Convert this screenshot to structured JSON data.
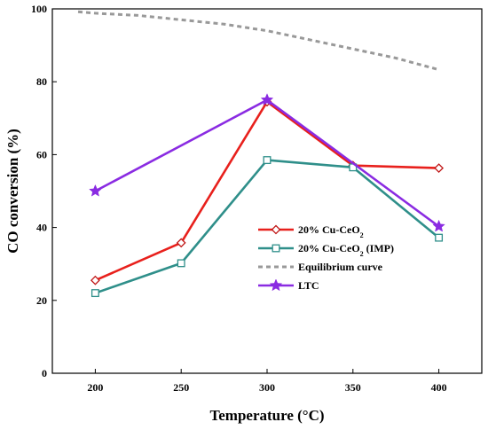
{
  "chart_data": {
    "type": "line",
    "xlabel": "Temperature (°C)",
    "ylabel": "CO conversion (%)",
    "xlim": [
      175,
      425
    ],
    "ylim": [
      0,
      100
    ],
    "xticks": [
      "200",
      "250",
      "300",
      "350",
      "400"
    ],
    "yticks": [
      "0",
      "20",
      "40",
      "60",
      "80",
      "100"
    ],
    "legend_position": "lower-center",
    "series": [
      {
        "name": "20% Cu-CeO2",
        "label_main": "20% Cu-CeO",
        "label_sub": "2",
        "label_tail": "",
        "color": "#e8201c",
        "marker": "diamond",
        "marker_color": "#c01818",
        "x": [
          200,
          250,
          300,
          350,
          400
        ],
        "y": [
          25.5,
          35.8,
          74.5,
          57.0,
          56.3
        ]
      },
      {
        "name": "20% Cu-CeO2 (IMP)",
        "label_main": "20% Cu-CeO",
        "label_sub": "2",
        "label_tail": " (IMP)",
        "color": "#2f8f8a",
        "marker": "square",
        "marker_color": "#2f8f8a",
        "x": [
          200,
          250,
          300,
          350,
          400
        ],
        "y": [
          22.0,
          30.2,
          58.5,
          56.5,
          37.2
        ]
      },
      {
        "name": "Equilibrium curve",
        "label_main": "Equilibrium curve",
        "label_sub": "",
        "label_tail": "",
        "color": "#999999",
        "marker": "none",
        "dashed": true,
        "x": [
          190,
          200,
          225,
          250,
          275,
          300,
          325,
          350,
          375,
          400
        ],
        "y": [
          99.2,
          98.8,
          98.2,
          97.0,
          95.8,
          94.0,
          91.5,
          89.0,
          86.5,
          83.3
        ]
      },
      {
        "name": "LTC",
        "label_main": "LTC",
        "label_sub": "",
        "label_tail": "",
        "color": "#8a2be2",
        "marker": "star",
        "marker_color": "#8a2be2",
        "x": [
          200,
          300,
          400
        ],
        "y": [
          50.0,
          75.0,
          40.3
        ]
      }
    ]
  }
}
